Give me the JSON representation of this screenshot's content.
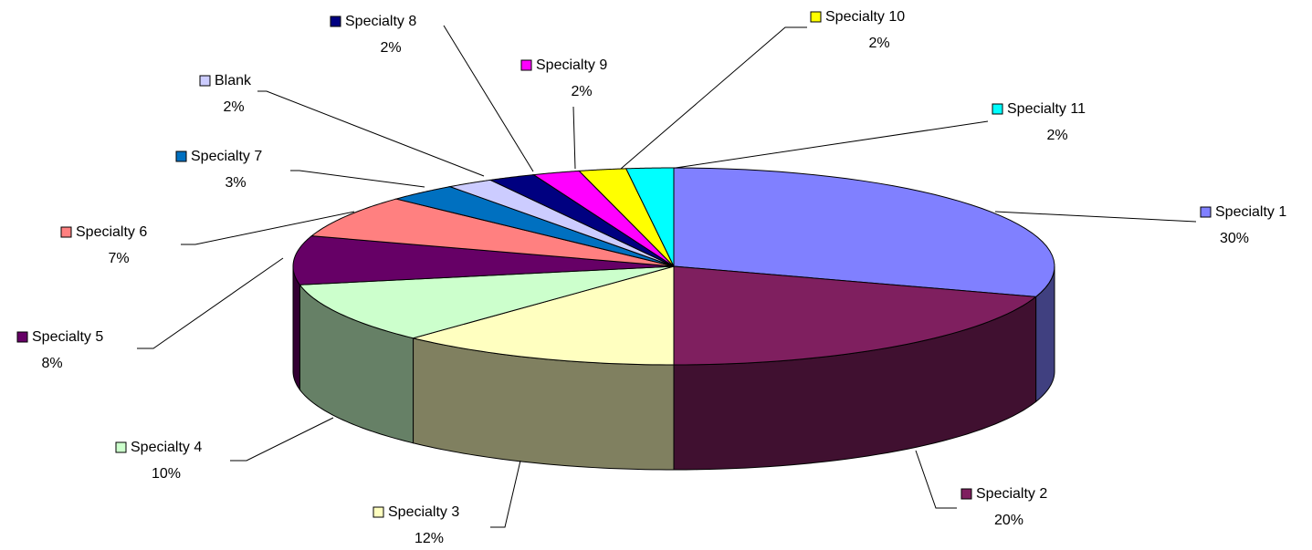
{
  "chart_data": {
    "type": "pie",
    "style": "3d",
    "categories": [
      "Specialty 1",
      "Specialty 2",
      "Specialty 3",
      "Specialty 4",
      "Specialty 5",
      "Specialty 6",
      "Specialty 7",
      "Blank",
      "Specialty 8",
      "Specialty 9",
      "Specialty 10",
      "Specialty 11"
    ],
    "values": [
      30,
      20,
      12,
      10,
      8,
      7,
      3,
      2,
      2,
      2,
      2,
      2
    ],
    "value_labels": [
      "30%",
      "20%",
      "12%",
      "10%",
      "8%",
      "7%",
      "3%",
      "2%",
      "2%",
      "2%",
      "2%",
      "2%"
    ],
    "colors": [
      "#8080ff",
      "#7f1f5f",
      "#ffffc0",
      "#ccffcc",
      "#660066",
      "#ff8080",
      "#0070c0",
      "#ccccff",
      "#000080",
      "#ff00ff",
      "#ffff00",
      "#00ffff"
    ]
  }
}
